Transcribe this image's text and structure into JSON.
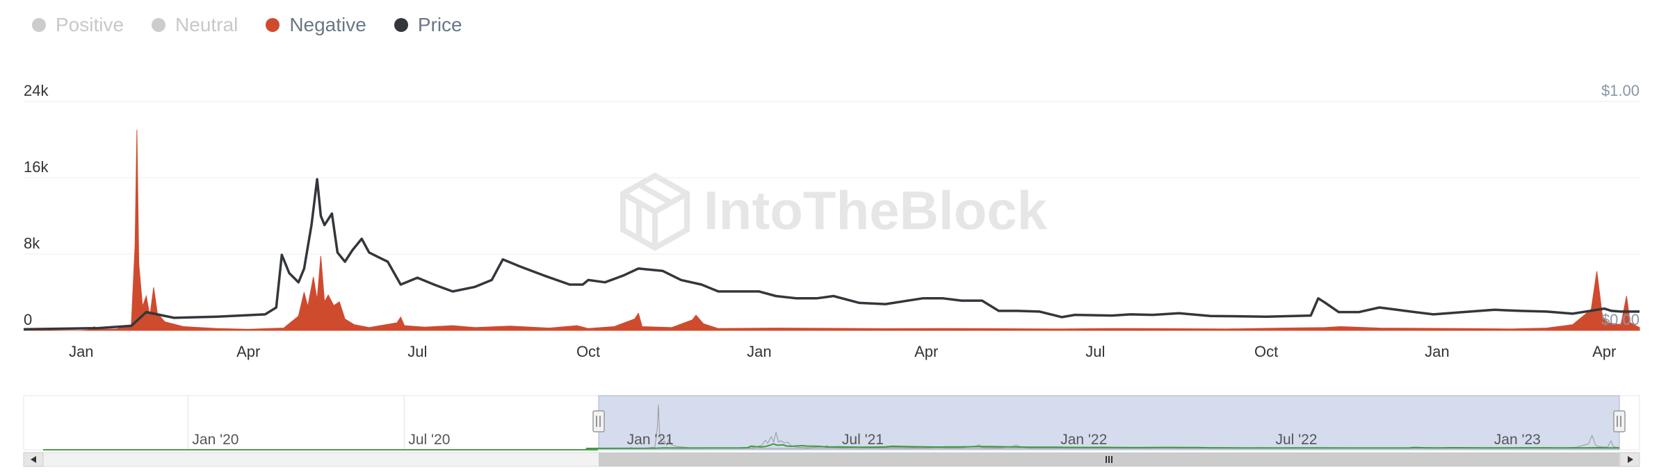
{
  "legend": {
    "items": [
      {
        "label": "Positive",
        "color": "#cccccc",
        "enabled": false,
        "icon": "circle-dot-icon"
      },
      {
        "label": "Neutral",
        "color": "#cccccc",
        "enabled": false,
        "icon": "circle-dot-icon"
      },
      {
        "label": "Negative",
        "color": "#cf4b2e",
        "enabled": true,
        "icon": "circle-dot-icon"
      },
      {
        "label": "Price",
        "color": "#33363b",
        "enabled": true,
        "icon": "circle-dot-icon"
      }
    ]
  },
  "watermark": {
    "text": "IntoTheBlock",
    "icon": "cube-logo-icon"
  },
  "chart_data": {
    "type": "area",
    "title": "",
    "grid": true,
    "left_axis": {
      "ticks": [
        "0",
        "8k",
        "16k",
        "24k"
      ],
      "range": [
        0,
        24000
      ]
    },
    "right_axis": {
      "ticks": [
        "$0.00",
        "$1.00"
      ],
      "range": [
        0,
        1.0
      ]
    },
    "x_ticks": [
      "Jan",
      "Apr",
      "Jul",
      "Oct",
      "Jan",
      "Apr",
      "Jul",
      "Oct",
      "Jan",
      "Apr"
    ],
    "series": [
      {
        "name": "Negative",
        "type": "area",
        "axis": "left",
        "color": "#cf4b2e",
        "points": [
          [
            "2021-01-01",
            0
          ],
          [
            "2021-01-06",
            80
          ],
          [
            "2021-01-08",
            400
          ],
          [
            "2021-01-10",
            100
          ],
          [
            "2021-01-20",
            150
          ],
          [
            "2021-01-28",
            600
          ],
          [
            "2021-01-30",
            9000
          ],
          [
            "2021-01-31",
            21000
          ],
          [
            "2021-02-01",
            7000
          ],
          [
            "2021-02-03",
            2500
          ],
          [
            "2021-02-05",
            3600
          ],
          [
            "2021-02-07",
            1500
          ],
          [
            "2021-02-09",
            4500
          ],
          [
            "2021-02-11",
            1800
          ],
          [
            "2021-02-15",
            900
          ],
          [
            "2021-02-25",
            400
          ],
          [
            "2021-03-15",
            200
          ],
          [
            "2021-04-01",
            120
          ],
          [
            "2021-04-20",
            250
          ],
          [
            "2021-04-28",
            1500
          ],
          [
            "2021-05-01",
            4000
          ],
          [
            "2021-05-03",
            2500
          ],
          [
            "2021-05-06",
            5600
          ],
          [
            "2021-05-08",
            3200
          ],
          [
            "2021-05-10",
            7800
          ],
          [
            "2021-05-12",
            3000
          ],
          [
            "2021-05-14",
            3700
          ],
          [
            "2021-05-17",
            2600
          ],
          [
            "2021-05-20",
            3000
          ],
          [
            "2021-05-23",
            1200
          ],
          [
            "2021-05-28",
            600
          ],
          [
            "2021-06-05",
            300
          ],
          [
            "2021-06-20",
            800
          ],
          [
            "2021-06-22",
            1400
          ],
          [
            "2021-06-24",
            500
          ],
          [
            "2021-07-05",
            350
          ],
          [
            "2021-07-20",
            500
          ],
          [
            "2021-08-01",
            300
          ],
          [
            "2021-08-20",
            450
          ],
          [
            "2021-09-10",
            250
          ],
          [
            "2021-09-25",
            500
          ],
          [
            "2021-10-01",
            200
          ],
          [
            "2021-10-15",
            400
          ],
          [
            "2021-10-26",
            1200
          ],
          [
            "2021-10-28",
            1800
          ],
          [
            "2021-10-30",
            400
          ],
          [
            "2021-11-15",
            300
          ],
          [
            "2021-11-26",
            1100
          ],
          [
            "2021-11-28",
            1600
          ],
          [
            "2021-12-02",
            700
          ],
          [
            "2021-12-10",
            200
          ],
          [
            "2022-01-10",
            250
          ],
          [
            "2022-02-10",
            220
          ],
          [
            "2022-03-10",
            180
          ],
          [
            "2022-04-10",
            200
          ],
          [
            "2022-05-10",
            180
          ],
          [
            "2022-06-10",
            150
          ],
          [
            "2022-07-10",
            200
          ],
          [
            "2022-08-10",
            180
          ],
          [
            "2022-09-10",
            150
          ],
          [
            "2022-10-10",
            250
          ],
          [
            "2022-11-01",
            300
          ],
          [
            "2022-11-10",
            400
          ],
          [
            "2022-12-01",
            250
          ],
          [
            "2023-01-10",
            200
          ],
          [
            "2023-02-10",
            150
          ],
          [
            "2023-03-01",
            250
          ],
          [
            "2023-03-15",
            600
          ],
          [
            "2023-03-25",
            2200
          ],
          [
            "2023-03-28",
            6200
          ],
          [
            "2023-03-31",
            1500
          ],
          [
            "2023-04-03",
            800
          ],
          [
            "2023-04-10",
            600
          ],
          [
            "2023-04-13",
            3600
          ],
          [
            "2023-04-15",
            800
          ],
          [
            "2023-04-20",
            300
          ]
        ]
      },
      {
        "name": "Price",
        "type": "line",
        "axis": "right",
        "color": "#33363b",
        "points": [
          [
            "2020-12-01",
            0.005
          ],
          [
            "2021-01-10",
            0.01
          ],
          [
            "2021-01-28",
            0.02
          ],
          [
            "2021-02-05",
            0.08
          ],
          [
            "2021-02-20",
            0.055
          ],
          [
            "2021-03-15",
            0.06
          ],
          [
            "2021-04-10",
            0.07
          ],
          [
            "2021-04-16",
            0.1
          ],
          [
            "2021-04-19",
            0.33
          ],
          [
            "2021-04-23",
            0.25
          ],
          [
            "2021-04-28",
            0.21
          ],
          [
            "2021-05-01",
            0.27
          ],
          [
            "2021-05-05",
            0.46
          ],
          [
            "2021-05-08",
            0.66
          ],
          [
            "2021-05-10",
            0.5
          ],
          [
            "2021-05-12",
            0.46
          ],
          [
            "2021-05-16",
            0.51
          ],
          [
            "2021-05-19",
            0.34
          ],
          [
            "2021-05-23",
            0.3
          ],
          [
            "2021-05-27",
            0.35
          ],
          [
            "2021-06-01",
            0.4
          ],
          [
            "2021-06-05",
            0.34
          ],
          [
            "2021-06-10",
            0.32
          ],
          [
            "2021-06-15",
            0.3
          ],
          [
            "2021-06-22",
            0.2
          ],
          [
            "2021-07-01",
            0.23
          ],
          [
            "2021-07-10",
            0.2
          ],
          [
            "2021-07-20",
            0.17
          ],
          [
            "2021-08-01",
            0.19
          ],
          [
            "2021-08-10",
            0.22
          ],
          [
            "2021-08-16",
            0.31
          ],
          [
            "2021-08-25",
            0.28
          ],
          [
            "2021-09-07",
            0.24
          ],
          [
            "2021-09-21",
            0.2
          ],
          [
            "2021-09-28",
            0.2
          ],
          [
            "2021-10-01",
            0.22
          ],
          [
            "2021-10-10",
            0.21
          ],
          [
            "2021-10-20",
            0.24
          ],
          [
            "2021-10-28",
            0.27
          ],
          [
            "2021-11-10",
            0.26
          ],
          [
            "2021-11-20",
            0.22
          ],
          [
            "2021-12-01",
            0.2
          ],
          [
            "2021-12-10",
            0.17
          ],
          [
            "2021-12-25",
            0.17
          ],
          [
            "2022-01-01",
            0.17
          ],
          [
            "2022-01-10",
            0.15
          ],
          [
            "2022-01-21",
            0.14
          ],
          [
            "2022-02-01",
            0.14
          ],
          [
            "2022-02-10",
            0.15
          ],
          [
            "2022-02-24",
            0.12
          ],
          [
            "2022-03-10",
            0.115
          ],
          [
            "2022-03-30",
            0.14
          ],
          [
            "2022-04-10",
            0.14
          ],
          [
            "2022-04-20",
            0.13
          ],
          [
            "2022-05-01",
            0.13
          ],
          [
            "2022-05-10",
            0.085
          ],
          [
            "2022-05-20",
            0.085
          ],
          [
            "2022-06-01",
            0.082
          ],
          [
            "2022-06-13",
            0.058
          ],
          [
            "2022-06-20",
            0.068
          ],
          [
            "2022-07-10",
            0.065
          ],
          [
            "2022-07-20",
            0.07
          ],
          [
            "2022-08-01",
            0.068
          ],
          [
            "2022-08-15",
            0.075
          ],
          [
            "2022-09-01",
            0.063
          ],
          [
            "2022-10-01",
            0.06
          ],
          [
            "2022-10-25",
            0.065
          ],
          [
            "2022-10-29",
            0.14
          ],
          [
            "2022-11-01",
            0.125
          ],
          [
            "2022-11-09",
            0.08
          ],
          [
            "2022-11-20",
            0.08
          ],
          [
            "2022-12-01",
            0.1
          ],
          [
            "2022-12-15",
            0.085
          ],
          [
            "2022-12-30",
            0.07
          ],
          [
            "2023-01-15",
            0.08
          ],
          [
            "2023-02-01",
            0.09
          ],
          [
            "2023-02-15",
            0.085
          ],
          [
            "2023-03-01",
            0.082
          ],
          [
            "2023-03-15",
            0.073
          ],
          [
            "2023-03-28",
            0.09
          ],
          [
            "2023-04-01",
            0.095
          ],
          [
            "2023-04-05",
            0.085
          ],
          [
            "2023-04-10",
            0.082
          ],
          [
            "2023-04-20",
            0.082
          ]
        ]
      }
    ],
    "navigator": {
      "x_ticks": [
        "Jan '20",
        "Jul '20",
        "Jan '21",
        "Jul '21",
        "Jan '22",
        "Jul '22",
        "Jan '23"
      ],
      "selected_range": [
        "2020-12-01",
        "2023-04-20"
      ]
    }
  }
}
